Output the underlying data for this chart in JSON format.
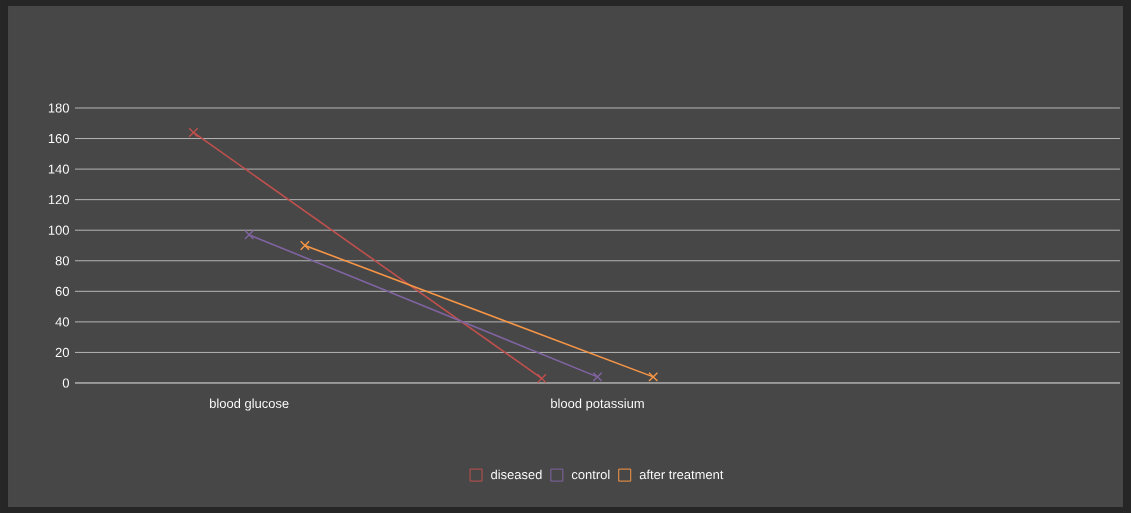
{
  "chart_data": {
    "type": "line",
    "categories": [
      "blood glucose",
      "blood potassium",
      null
    ],
    "series": [
      {
        "name": "diseased",
        "color": "#c0504d",
        "values": [
          164,
          3,
          null
        ]
      },
      {
        "name": "control",
        "color": "#8064a2",
        "values": [
          97,
          4,
          null
        ]
      },
      {
        "name": "after treatment",
        "color": "#f79646",
        "values": [
          90,
          4,
          null
        ]
      }
    ],
    "ylim": [
      0,
      180
    ],
    "yticks": [
      0,
      20,
      40,
      60,
      80,
      100,
      120,
      140,
      160,
      180
    ],
    "grid": "y",
    "legend": "bottom",
    "marker": "cross",
    "line_style": "solid"
  }
}
